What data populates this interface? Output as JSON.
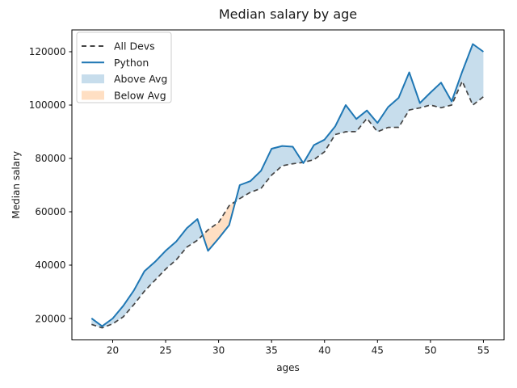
{
  "chart_data": {
    "type": "line",
    "title": "Median salary by age",
    "xlabel": "ages",
    "ylabel": "Median salary",
    "x": [
      18,
      19,
      20,
      21,
      22,
      23,
      24,
      25,
      26,
      27,
      28,
      29,
      30,
      31,
      32,
      33,
      34,
      35,
      36,
      37,
      38,
      39,
      40,
      41,
      42,
      43,
      44,
      45,
      46,
      47,
      48,
      49,
      50,
      51,
      52,
      53,
      54,
      55
    ],
    "series": [
      {
        "name": "All Devs",
        "color": "#444444",
        "line_style": "dashed",
        "values": [
          17784,
          16500,
          18012,
          20628,
          25206,
          30252,
          34368,
          38496,
          42000,
          46752,
          49320,
          53200,
          56000,
          62316,
          64928,
          67317,
          68748,
          73752,
          77232,
          78000,
          78508,
          79536,
          82488,
          88935,
          90000,
          90056,
          95000,
          90000,
          91633,
          91660,
          98150,
          98964,
          100000,
          98988,
          100000,
          108923,
          100000,
          103117
        ]
      },
      {
        "name": "Python",
        "color": "#1f77b4",
        "line_style": "solid",
        "values": [
          20046,
          17100,
          20000,
          24744,
          30500,
          37732,
          41247,
          45372,
          48876,
          53850,
          57287,
          45372,
          50000,
          55000,
          70000,
          71496,
          75370,
          83640,
          84666,
          84392,
          78254,
          85000,
          87038,
          91991,
          100000,
          94796,
          97962,
          93302,
          99240,
          102736,
          112285,
          100771,
          104708,
          108423,
          101407,
          112542,
          122870,
          120000
        ]
      }
    ],
    "fills": [
      {
        "label": "Above Avg",
        "mode": "above",
        "between": [
          "Python",
          "All Devs"
        ],
        "color": "rgba(31,119,180,0.25)"
      },
      {
        "label": "Below Avg",
        "mode": "below",
        "between": [
          "Python",
          "All Devs"
        ],
        "color": "rgba(255,127,14,0.25)"
      }
    ],
    "legend": {
      "position": "upper left",
      "entries": [
        {
          "label": "All Devs",
          "swatch": "dashed-line",
          "color": "#444444"
        },
        {
          "label": "Python",
          "swatch": "solid-line",
          "color": "#1f77b4"
        },
        {
          "label": "Above Avg",
          "swatch": "patch",
          "color": "rgba(31,119,180,0.25)"
        },
        {
          "label": "Below Avg",
          "swatch": "patch",
          "color": "rgba(255,127,14,0.25)"
        }
      ]
    },
    "xticks": [
      20,
      25,
      30,
      35,
      40,
      45,
      50,
      55
    ],
    "yticks": [
      20000,
      40000,
      60000,
      80000,
      100000,
      120000
    ],
    "xlim": [
      16.15,
      56.95
    ],
    "ylim": [
      11970,
      128180
    ],
    "grid": false,
    "axis_color": "#000000",
    "background": "#ffffff"
  }
}
